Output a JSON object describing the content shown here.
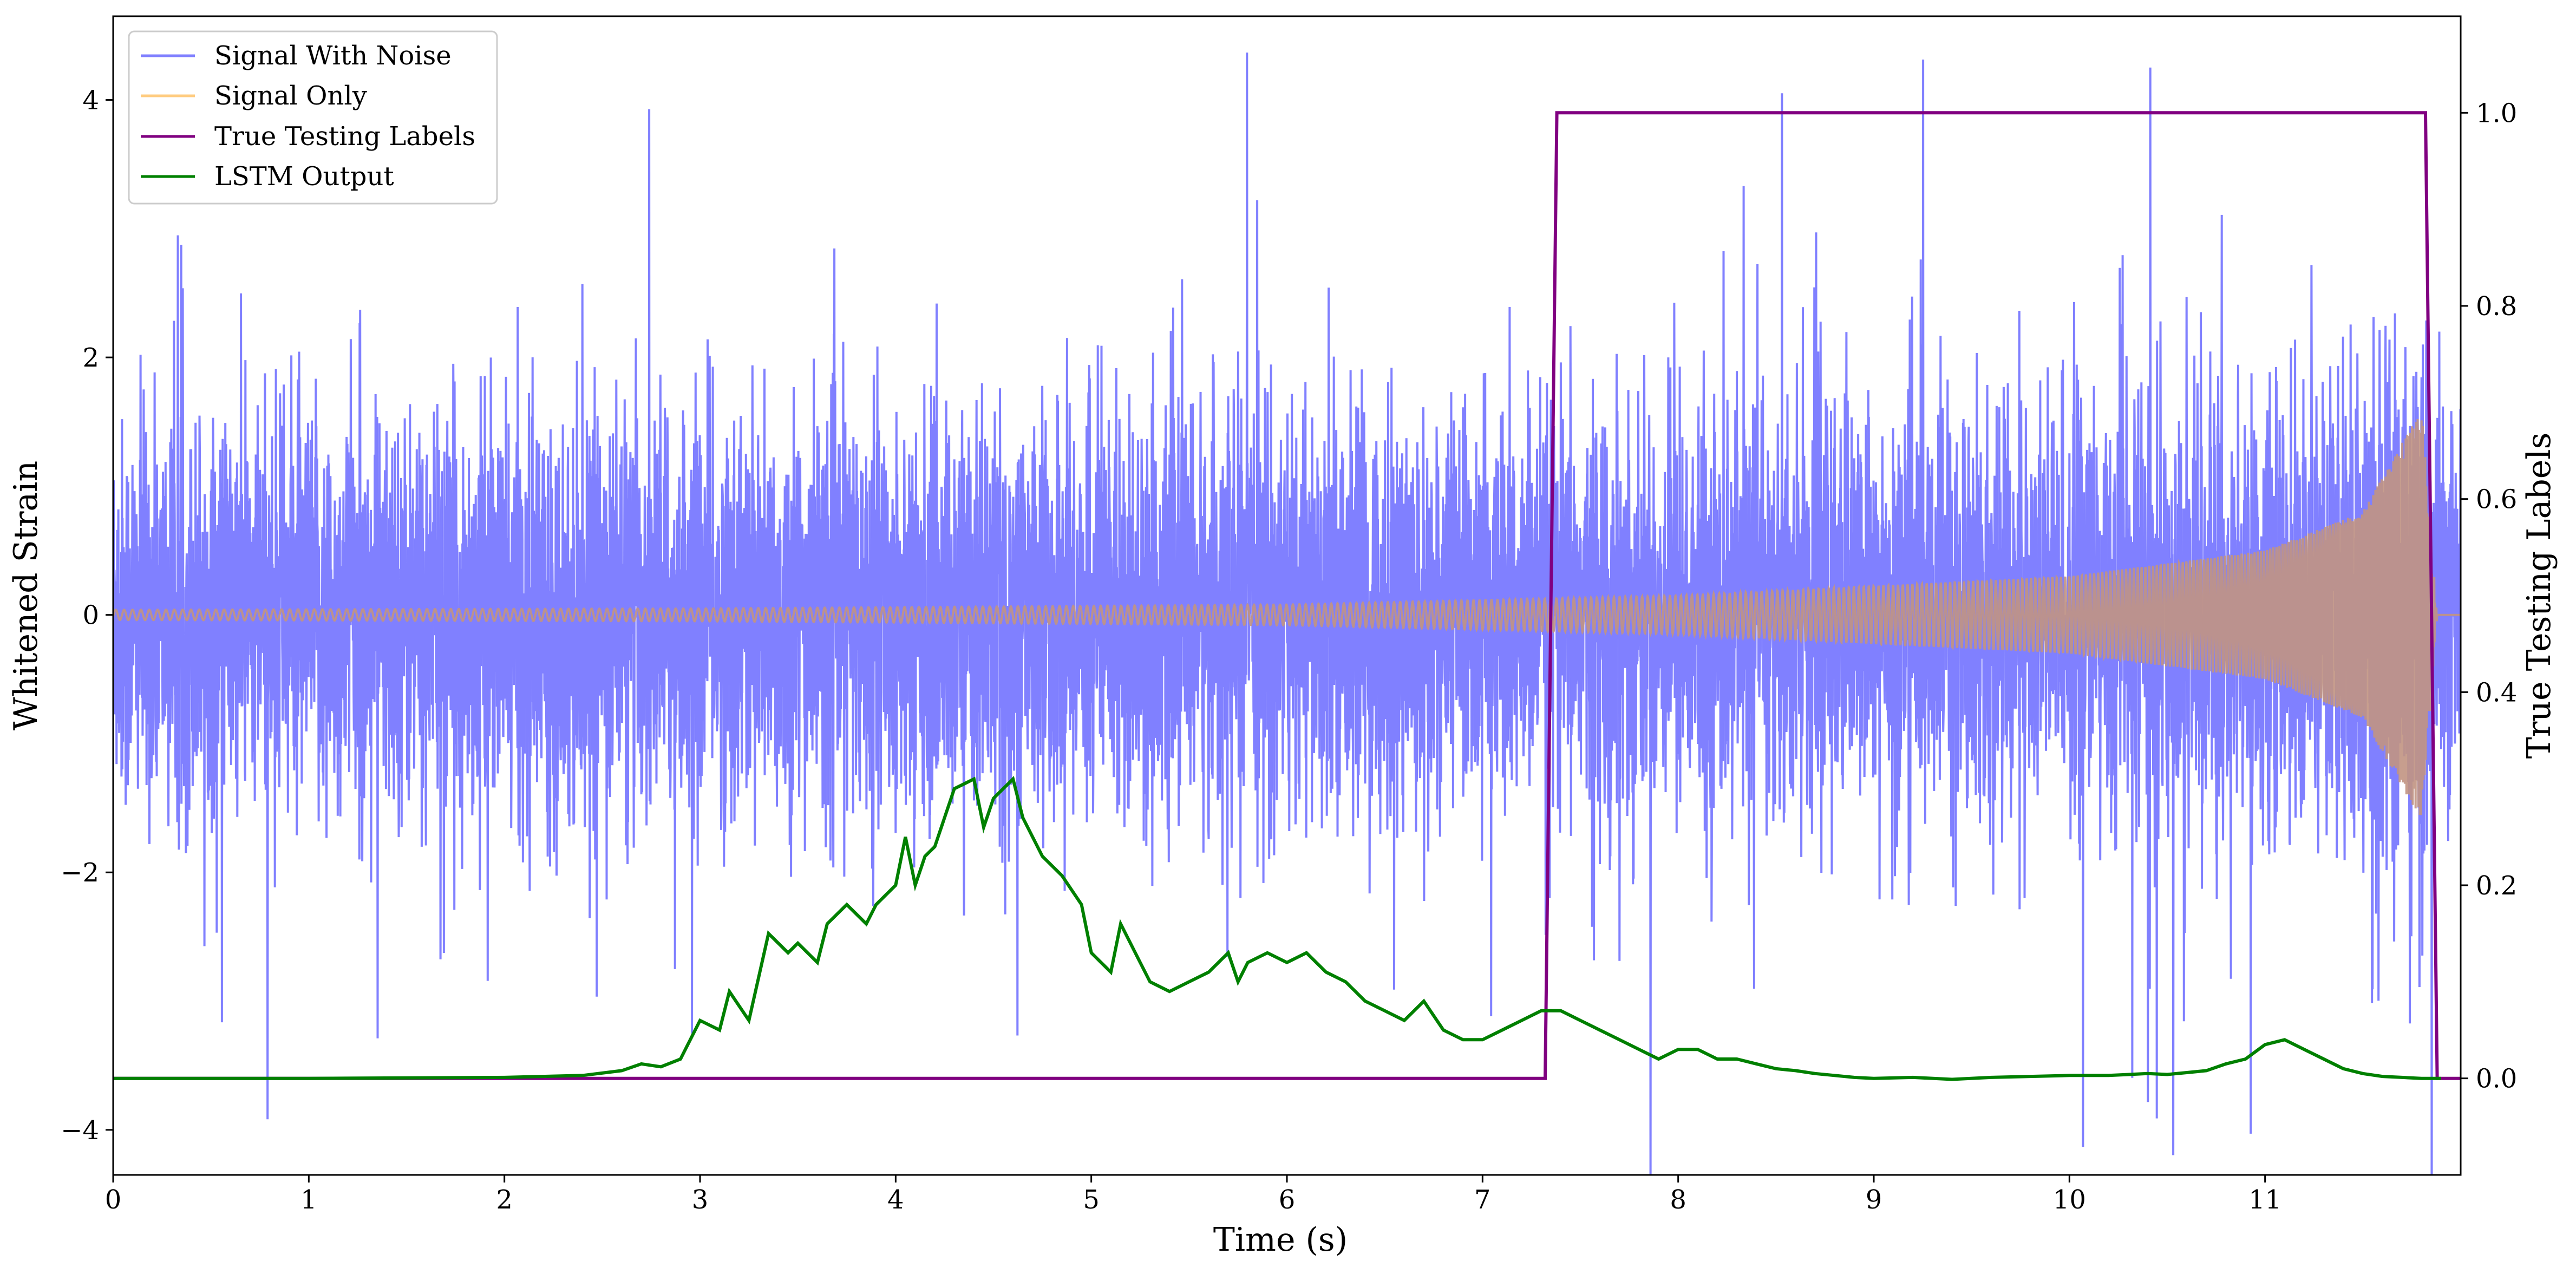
{
  "chart_data": {
    "type": "line",
    "title": "",
    "xlabel": "Time (s)",
    "ylabel": "Whitened Strain",
    "y2label": "True Testing Labels",
    "xlim": [
      0,
      12
    ],
    "ylim": [
      -4.35,
      4.65
    ],
    "y2lim": [
      -0.1,
      1.1
    ],
    "xticks": [
      "0",
      "1",
      "2",
      "3",
      "4",
      "5",
      "6",
      "7",
      "8",
      "9",
      "10",
      "11"
    ],
    "yticks": [
      "−4",
      "−2",
      "0",
      "2",
      "4"
    ],
    "y2ticks": [
      "0.0",
      "0.2",
      "0.4",
      "0.6",
      "0.8",
      "1.0"
    ],
    "grid": false,
    "legend_position": "top-left",
    "colors": {
      "noise": "#8080ff",
      "signal": "#ffcc80",
      "labels": "#800080",
      "lstm": "#008000",
      "overlap": "#c19482"
    },
    "legend": [
      {
        "name": "Signal With Noise",
        "color": "#8080ff"
      },
      {
        "name": "Signal Only",
        "color": "#ffcc80"
      },
      {
        "name": "True Testing Labels",
        "color": "#800080"
      },
      {
        "name": "LSTM Output",
        "color": "#008000"
      }
    ],
    "series": [
      {
        "name": "Signal With Noise",
        "axis": "left",
        "description": "dense gaussian noise, std≈0.75, spikes up to ±4.3",
        "x_range": [
          0,
          12
        ],
        "noise_std": 0.75
      },
      {
        "name": "Signal Only",
        "axis": "left",
        "description": "chirp with growing amplitude, envelope in strain units",
        "envelope": [
          [
            0,
            0.04
          ],
          [
            3,
            0.05
          ],
          [
            6,
            0.08
          ],
          [
            8,
            0.15
          ],
          [
            10,
            0.3
          ],
          [
            11,
            0.5
          ],
          [
            11.5,
            0.8
          ],
          [
            11.8,
            1.6
          ],
          [
            11.88,
            0.0
          ],
          [
            12,
            0.0
          ]
        ]
      },
      {
        "name": "True Testing Labels",
        "axis": "right",
        "x": [
          0,
          7.32,
          7.38,
          11.82,
          11.88,
          12
        ],
        "y": [
          0,
          0,
          1,
          1,
          0,
          0
        ]
      },
      {
        "name": "LSTM Output",
        "axis": "right",
        "x": [
          0,
          1,
          2,
          2.4,
          2.6,
          2.7,
          2.8,
          2.9,
          3.0,
          3.1,
          3.15,
          3.25,
          3.35,
          3.45,
          3.5,
          3.6,
          3.65,
          3.75,
          3.85,
          3.9,
          4.0,
          4.05,
          4.1,
          4.15,
          4.2,
          4.3,
          4.4,
          4.45,
          4.5,
          4.6,
          4.65,
          4.75,
          4.85,
          4.95,
          5.0,
          5.1,
          5.15,
          5.25,
          5.3,
          5.4,
          5.5,
          5.6,
          5.7,
          5.75,
          5.8,
          5.9,
          6.0,
          6.1,
          6.2,
          6.3,
          6.4,
          6.5,
          6.6,
          6.7,
          6.8,
          6.9,
          7.0,
          7.1,
          7.2,
          7.3,
          7.4,
          7.5,
          7.6,
          7.7,
          7.8,
          7.9,
          8.0,
          8.1,
          8.2,
          8.3,
          8.4,
          8.5,
          8.6,
          8.7,
          8.8,
          8.9,
          9.0,
          9.2,
          9.4,
          9.6,
          9.8,
          10.0,
          10.2,
          10.4,
          10.5,
          10.6,
          10.7,
          10.8,
          10.9,
          11.0,
          11.1,
          11.2,
          11.3,
          11.4,
          11.5,
          11.6,
          11.7,
          11.8,
          11.9
        ],
        "y": [
          0,
          0,
          0.001,
          0.003,
          0.008,
          0.015,
          0.012,
          0.02,
          0.06,
          0.05,
          0.09,
          0.06,
          0.15,
          0.13,
          0.14,
          0.12,
          0.16,
          0.18,
          0.16,
          0.18,
          0.2,
          0.25,
          0.2,
          0.23,
          0.24,
          0.3,
          0.31,
          0.26,
          0.29,
          0.31,
          0.27,
          0.23,
          0.21,
          0.18,
          0.13,
          0.11,
          0.16,
          0.12,
          0.1,
          0.09,
          0.1,
          0.11,
          0.13,
          0.1,
          0.12,
          0.13,
          0.12,
          0.13,
          0.11,
          0.1,
          0.08,
          0.07,
          0.06,
          0.08,
          0.05,
          0.04,
          0.04,
          0.05,
          0.06,
          0.07,
          0.07,
          0.06,
          0.05,
          0.04,
          0.03,
          0.02,
          0.03,
          0.03,
          0.02,
          0.02,
          0.015,
          0.01,
          0.008,
          0.005,
          0.003,
          0.001,
          0,
          0.001,
          -0.001,
          0.001,
          0.002,
          0.003,
          0.003,
          0.005,
          0.004,
          0.006,
          0.008,
          0.015,
          0.02,
          0.035,
          0.04,
          0.03,
          0.02,
          0.01,
          0.005,
          0.002,
          0.001,
          0.0,
          0.0
        ]
      }
    ]
  }
}
